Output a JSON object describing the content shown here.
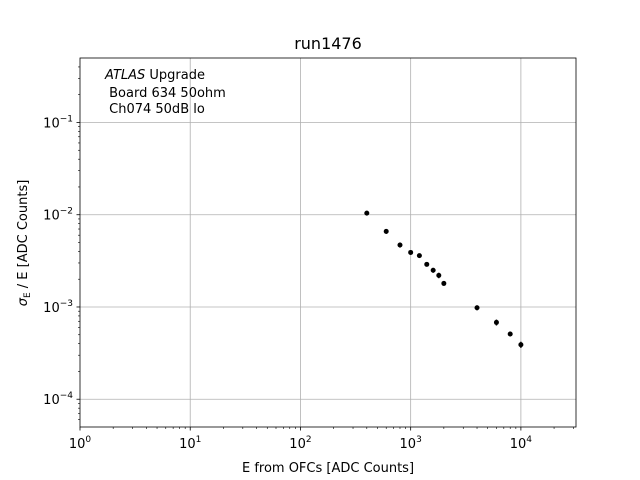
{
  "chart_data": {
    "type": "scatter",
    "title": "run1476",
    "xlabel": "E from OFCs [ADC Counts]",
    "ylabel_symbol": "σ",
    "ylabel_subscript": "E",
    "ylabel_rest": " / E [ADC Counts]",
    "xscale": "log",
    "yscale": "log",
    "xlim": [
      1,
      31623
    ],
    "ylim": [
      5e-05,
      0.5
    ],
    "grid": true,
    "x_ticks": [
      {
        "value": 1,
        "base": "10",
        "exp": "0"
      },
      {
        "value": 10,
        "base": "10",
        "exp": "1"
      },
      {
        "value": 100,
        "base": "10",
        "exp": "2"
      },
      {
        "value": 1000,
        "base": "10",
        "exp": "3"
      },
      {
        "value": 10000,
        "base": "10",
        "exp": "4"
      }
    ],
    "y_ticks": [
      {
        "value": 0.0001,
        "base": "10",
        "exp": "−4"
      },
      {
        "value": 0.001,
        "base": "10",
        "exp": "−3"
      },
      {
        "value": 0.01,
        "base": "10",
        "exp": "−2"
      },
      {
        "value": 0.1,
        "base": "10",
        "exp": "−1"
      }
    ],
    "annotation": {
      "italic": "ATLAS",
      "rest": " Upgrade",
      "line2": " Board 634 50ohm",
      "line3": " Ch074 50dB lo"
    },
    "points": [
      {
        "x": 400,
        "y": 0.0104,
        "yerr": 0.0006
      },
      {
        "x": 600,
        "y": 0.0066,
        "yerr": 0.0004
      },
      {
        "x": 800,
        "y": 0.0047,
        "yerr": 0.0003
      },
      {
        "x": 1000,
        "y": 0.0039,
        "yerr": 0.0002
      },
      {
        "x": 1200,
        "y": 0.0036,
        "yerr": 0.0002
      },
      {
        "x": 1400,
        "y": 0.0029,
        "yerr": 0.00015
      },
      {
        "x": 1600,
        "y": 0.0025,
        "yerr": 0.00015
      },
      {
        "x": 1800,
        "y": 0.0022,
        "yerr": 0.00015
      },
      {
        "x": 2000,
        "y": 0.0018,
        "yerr": 0.0001
      },
      {
        "x": 4000,
        "y": 0.00098,
        "yerr": 6e-05
      },
      {
        "x": 6000,
        "y": 0.00068,
        "yerr": 5e-05
      },
      {
        "x": 8000,
        "y": 0.00051,
        "yerr": 3e-05
      },
      {
        "x": 10000,
        "y": 0.00039,
        "yerr": 3e-05
      }
    ]
  }
}
